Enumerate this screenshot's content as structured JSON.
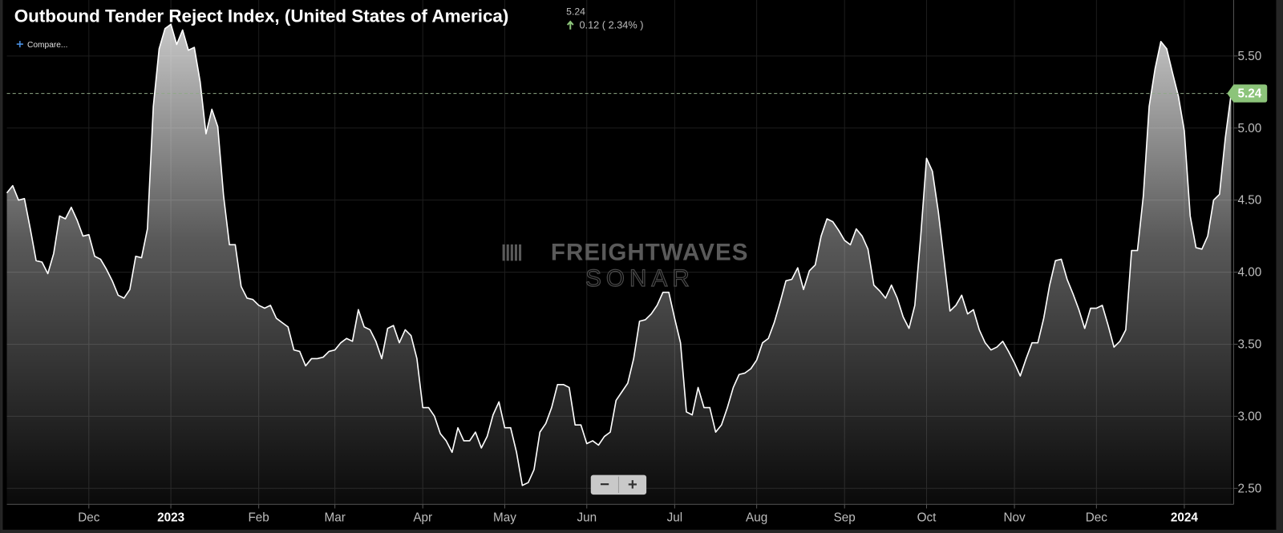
{
  "chart_data": {
    "type": "area",
    "title": "Outbound Tender Reject Index, (United States of America)",
    "last_value": 5.24,
    "change_text": "0.12 ( 2.34% )",
    "compare": "Compare...",
    "watermark": [
      "FREIGHTWAVES",
      "SONAR"
    ],
    "zoom_buttons": [
      "−",
      "+"
    ],
    "color": "#ffffff",
    "last_value_color": "#8cc47a",
    "values": [
      4.55,
      4.6,
      4.5,
      4.51,
      4.3,
      4.08,
      4.07,
      3.99,
      4.13,
      4.39,
      4.37,
      4.45,
      4.36,
      4.25,
      4.26,
      4.11,
      4.09,
      4.02,
      3.94,
      3.84,
      3.82,
      3.88,
      4.11,
      4.1,
      4.3,
      5.15,
      5.55,
      5.69,
      5.72,
      5.58,
      5.68,
      5.54,
      5.56,
      5.32,
      4.96,
      5.13,
      5.01,
      4.53,
      4.19,
      4.19,
      3.9,
      3.82,
      3.81,
      3.77,
      3.75,
      3.77,
      3.68,
      3.65,
      3.62,
      3.46,
      3.45,
      3.35,
      3.4,
      3.4,
      3.41,
      3.45,
      3.46,
      3.51,
      3.54,
      3.52,
      3.74,
      3.62,
      3.6,
      3.52,
      3.4,
      3.61,
      3.63,
      3.51,
      3.6,
      3.56,
      3.4,
      3.06,
      3.06,
      3.0,
      2.88,
      2.83,
      2.75,
      2.92,
      2.83,
      2.83,
      2.89,
      2.78,
      2.86,
      3.01,
      3.1,
      2.92,
      2.92,
      2.75,
      2.52,
      2.54,
      2.63,
      2.89,
      2.95,
      3.06,
      3.22,
      3.22,
      3.2,
      2.94,
      2.94,
      2.81,
      2.83,
      2.8,
      2.86,
      2.89,
      3.11,
      3.17,
      3.23,
      3.4,
      3.66,
      3.67,
      3.71,
      3.77,
      3.86,
      3.86,
      3.68,
      3.51,
      3.03,
      3.01,
      3.2,
      3.06,
      3.06,
      2.89,
      2.94,
      3.06,
      3.2,
      3.29,
      3.3,
      3.33,
      3.39,
      3.51,
      3.54,
      3.65,
      3.79,
      3.94,
      3.95,
      4.03,
      3.88,
      4.01,
      4.05,
      4.25,
      4.37,
      4.35,
      4.29,
      4.22,
      4.19,
      4.3,
      4.25,
      4.16,
      3.91,
      3.87,
      3.82,
      3.91,
      3.82,
      3.69,
      3.61,
      3.77,
      4.25,
      4.79,
      4.7,
      4.42,
      4.08,
      3.73,
      3.77,
      3.84,
      3.71,
      3.74,
      3.6,
      3.51,
      3.46,
      3.48,
      3.52,
      3.45,
      3.37,
      3.28,
      3.4,
      3.51,
      3.51,
      3.68,
      3.91,
      4.08,
      4.09,
      3.95,
      3.85,
      3.74,
      3.61,
      3.75,
      3.75,
      3.77,
      3.63,
      3.48,
      3.52,
      3.6,
      4.15,
      4.15,
      4.53,
      5.15,
      5.41,
      5.6,
      5.55,
      5.38,
      5.22,
      4.98,
      4.39,
      4.17,
      4.16,
      4.25,
      4.5,
      4.54,
      4.93,
      5.24
    ],
    "xlim": [
      0,
      209
    ],
    "xticks": [
      {
        "value": 14,
        "label": "Dec"
      },
      {
        "value": 28,
        "label": "2023"
      },
      {
        "value": 43,
        "label": "Feb"
      },
      {
        "value": 56,
        "label": "Mar"
      },
      {
        "value": 71,
        "label": "Apr"
      },
      {
        "value": 85,
        "label": "May"
      },
      {
        "value": 99,
        "label": "Jun"
      },
      {
        "value": 114,
        "label": "Jul"
      },
      {
        "value": 128,
        "label": "Aug"
      },
      {
        "value": 143,
        "label": "Sep"
      },
      {
        "value": 157,
        "label": "Oct"
      },
      {
        "value": 172,
        "label": "Nov"
      },
      {
        "value": 186,
        "label": "Dec"
      },
      {
        "value": 201,
        "label": "2024"
      }
    ],
    "ylim": [
      2.4,
      5.86
    ],
    "yticks": [
      {
        "value": 2.5,
        "label": "2.50"
      },
      {
        "value": 3.0,
        "label": "3.00"
      },
      {
        "value": 3.5,
        "label": "3.50"
      },
      {
        "value": 4.0,
        "label": "4.00"
      },
      {
        "value": 4.5,
        "label": "4.50"
      },
      {
        "value": 5.0,
        "label": "5.00"
      },
      {
        "value": 5.5,
        "label": "5.50"
      }
    ],
    "grid": true
  }
}
